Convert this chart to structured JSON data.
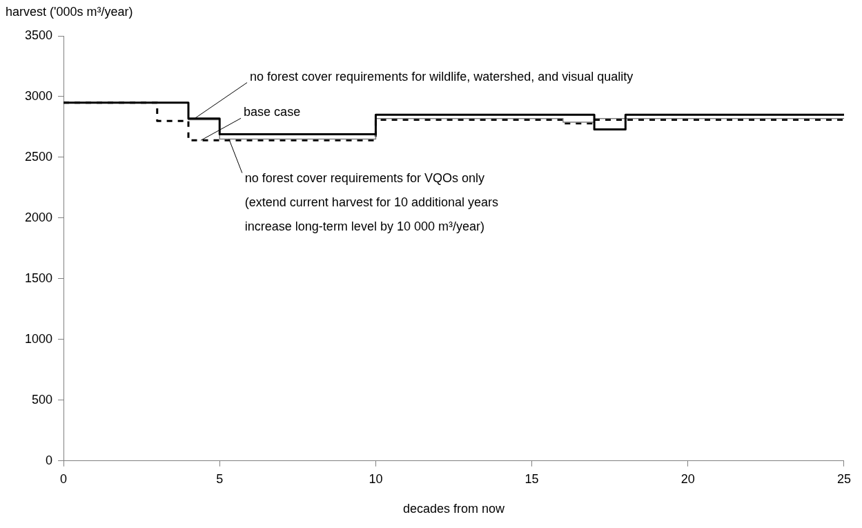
{
  "chart_data": {
    "type": "step",
    "ylabel": "harvest ('000s m³/year)",
    "xlabel": "decades from now",
    "xlim": [
      0,
      25
    ],
    "xticks": [
      0,
      5,
      10,
      15,
      20,
      25
    ],
    "ylim": [
      0,
      3500
    ],
    "yticks": [
      0,
      500,
      1000,
      1500,
      2000,
      2500,
      3000,
      3500
    ],
    "grid": false,
    "legend": false,
    "marker": "none",
    "series": [
      {
        "color": "#000000",
        "line_style": "solid",
        "x": [
          0,
          4,
          5,
          10,
          17,
          18,
          25
        ],
        "values": [
          2950,
          2820,
          2690,
          2850,
          2730,
          2850,
          2850
        ]
      },
      {
        "color": "#808080",
        "line_style": "solid",
        "x": [
          0,
          4,
          5,
          10,
          16,
          17,
          25
        ],
        "values": [
          2950,
          2810,
          2650,
          2820,
          2790,
          2820,
          2820
        ]
      },
      {
        "color": "#000000",
        "line_style": "dashed",
        "x": [
          0,
          3,
          4,
          10,
          16,
          17,
          25
        ],
        "values": [
          2950,
          2800,
          2640,
          2810,
          2780,
          2810,
          2810
        ]
      }
    ],
    "annotations": [
      {
        "text": "no forest cover requirements for wildlife, watershed, and visual quality",
        "x": 4.2,
        "y": 2820
      },
      {
        "text": "base case",
        "x": 4.4,
        "y": 2640
      },
      {
        "text": "no forest cover requirements for VQOs only\n(extend current harvest for 10 additional years\nincrease long-term level by 10 000 m³/year)",
        "x": 5.3,
        "y": 2650
      }
    ]
  }
}
